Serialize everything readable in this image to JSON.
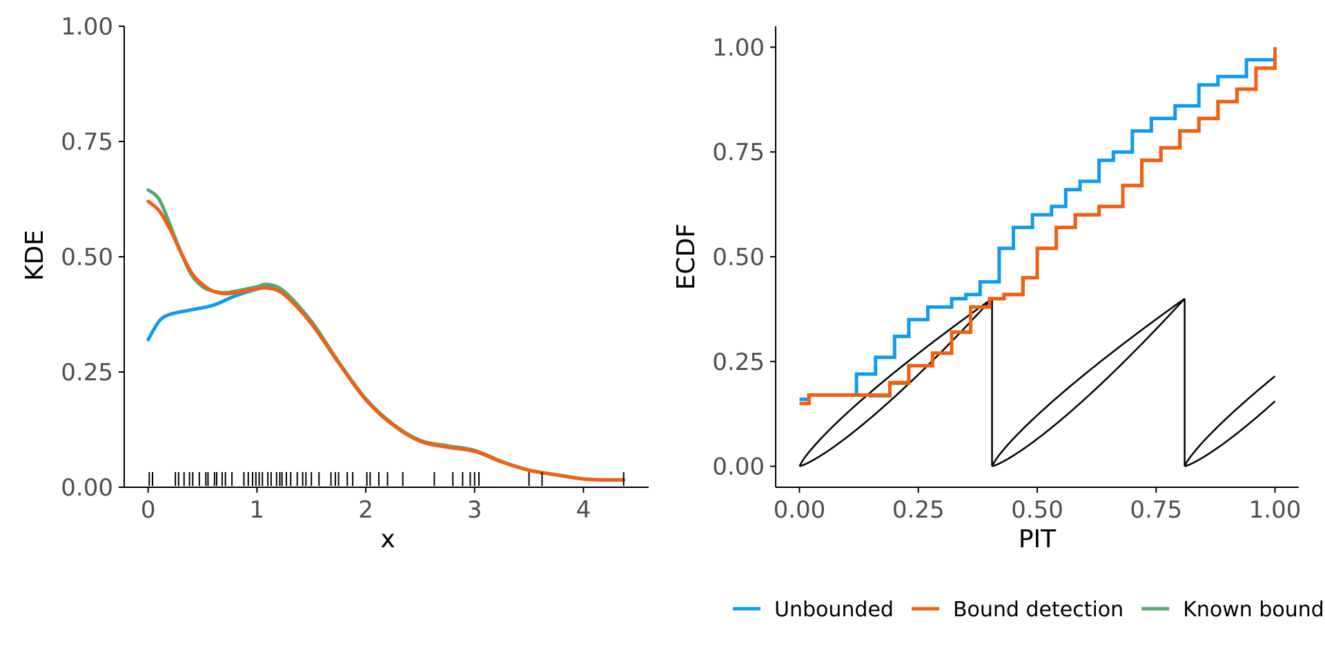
{
  "colors": {
    "unbounded": "#0f9bf0",
    "bound_detection": "#f2600f",
    "known_bounds": "#5aa672",
    "envelope": "#000000",
    "axis": "#000000"
  },
  "legend": {
    "items": [
      {
        "label": "Unbounded",
        "color_key": "unbounded"
      },
      {
        "label": "Bound detection",
        "color_key": "bound_detection"
      },
      {
        "label": "Known bounds",
        "color_key": "known_bounds"
      }
    ]
  },
  "chart_data": [
    {
      "type": "line",
      "xlabel": "x",
      "ylabel": "KDE",
      "xlim": [
        -0.22,
        4.6
      ],
      "ylim": [
        0,
        1
      ],
      "xticks": [
        0,
        1,
        2,
        3,
        4
      ],
      "xtick_labels": [
        "0",
        "1",
        "2",
        "3",
        "4"
      ],
      "yticks": [
        0,
        0.25,
        0.5,
        0.75,
        1
      ],
      "ytick_labels": [
        "0.00",
        "0.25",
        "0.50",
        "0.75",
        "1.00"
      ],
      "grid": false,
      "series": [
        {
          "name": "Unbounded",
          "color_key": "unbounded",
          "x": [
            0,
            0.1,
            0.2,
            0.4,
            0.6,
            0.8,
            1.0,
            1.1,
            1.25,
            1.5,
            1.75,
            2.0,
            2.25,
            2.5,
            2.75,
            3.0,
            3.25,
            3.5,
            3.75,
            4.0,
            4.2,
            4.37
          ],
          "y": [
            0.32,
            0.36,
            0.375,
            0.385,
            0.395,
            0.415,
            0.43,
            0.435,
            0.42,
            0.355,
            0.27,
            0.19,
            0.135,
            0.1,
            0.087,
            0.078,
            0.055,
            0.037,
            0.027,
            0.018,
            0.016,
            0.016
          ]
        },
        {
          "name": "Bound detection",
          "color_key": "bound_detection",
          "x": [
            0,
            0.1,
            0.2,
            0.3,
            0.4,
            0.5,
            0.6,
            0.7,
            0.8,
            0.9,
            1.0,
            1.1,
            1.25,
            1.5,
            1.75,
            2.0,
            2.25,
            2.5,
            2.75,
            3.0,
            3.25,
            3.5,
            3.75,
            4.0,
            4.2,
            4.37
          ],
          "y": [
            0.62,
            0.6,
            0.56,
            0.51,
            0.465,
            0.44,
            0.425,
            0.42,
            0.422,
            0.426,
            0.43,
            0.432,
            0.418,
            0.355,
            0.27,
            0.19,
            0.135,
            0.1,
            0.087,
            0.078,
            0.055,
            0.037,
            0.027,
            0.018,
            0.016,
            0.016
          ]
        },
        {
          "name": "Known bounds",
          "color_key": "known_bounds",
          "x": [
            0,
            0.1,
            0.2,
            0.3,
            0.4,
            0.5,
            0.6,
            0.7,
            0.8,
            0.9,
            1.0,
            1.1,
            1.25,
            1.5,
            1.75,
            2.0,
            2.25,
            2.5,
            2.75,
            3.0,
            3.25,
            3.5,
            3.75,
            4.0,
            4.2,
            4.37
          ],
          "y": [
            0.645,
            0.625,
            0.57,
            0.51,
            0.46,
            0.435,
            0.425,
            0.422,
            0.425,
            0.43,
            0.435,
            0.44,
            0.425,
            0.36,
            0.272,
            0.192,
            0.137,
            0.102,
            0.09,
            0.08,
            0.056,
            0.037,
            0.027,
            0.018,
            0.016,
            0.016
          ]
        }
      ],
      "rug": [
        0.01,
        0.04,
        0.25,
        0.28,
        0.33,
        0.38,
        0.41,
        0.47,
        0.53,
        0.55,
        0.61,
        0.63,
        0.68,
        0.71,
        0.77,
        0.88,
        0.92,
        0.96,
        0.99,
        1.02,
        1.05,
        1.1,
        1.13,
        1.18,
        1.21,
        1.23,
        1.27,
        1.31,
        1.37,
        1.42,
        1.45,
        1.5,
        1.57,
        1.68,
        1.72,
        1.75,
        1.83,
        1.88,
        2.01,
        2.04,
        2.12,
        2.2,
        2.34,
        2.63,
        2.8,
        2.89,
        2.96,
        3.0,
        3.04,
        3.5,
        3.62,
        4.37
      ]
    },
    {
      "type": "line",
      "xlabel": "PIT",
      "ylabel": "ECDF",
      "xlim": [
        -0.05,
        1.05
      ],
      "ylim": [
        -0.05,
        1.05
      ],
      "xticks": [
        0,
        0.25,
        0.5,
        0.75,
        1
      ],
      "xtick_labels": [
        "0.00",
        "0.25",
        "0.50",
        "0.75",
        "1.00"
      ],
      "yticks": [
        0,
        0.25,
        0.5,
        0.75,
        1
      ],
      "ytick_labels": [
        "0.00",
        "0.25",
        "0.50",
        "0.75",
        "1.00"
      ],
      "grid": false,
      "series": [
        {
          "name": "Unbounded",
          "color_key": "unbounded",
          "x": [
            0,
            0.02,
            0.09,
            0.12,
            0.16,
            0.2,
            0.23,
            0.27,
            0.32,
            0.35,
            0.38,
            0.42,
            0.45,
            0.49,
            0.53,
            0.56,
            0.59,
            0.63,
            0.66,
            0.7,
            0.74,
            0.79,
            0.84,
            0.88,
            0.94,
            1.0
          ],
          "y": [
            0.16,
            0.17,
            0.17,
            0.22,
            0.26,
            0.31,
            0.35,
            0.38,
            0.4,
            0.41,
            0.44,
            0.52,
            0.57,
            0.6,
            0.62,
            0.66,
            0.68,
            0.73,
            0.75,
            0.8,
            0.83,
            0.86,
            0.91,
            0.93,
            0.97,
            1.0
          ]
        },
        {
          "name": "Bound detection",
          "color_key": "bound_detection",
          "x": [
            0,
            0.02,
            0.08,
            0.15,
            0.19,
            0.23,
            0.28,
            0.32,
            0.36,
            0.4,
            0.43,
            0.47,
            0.5,
            0.54,
            0.58,
            0.63,
            0.68,
            0.72,
            0.76,
            0.8,
            0.84,
            0.88,
            0.92,
            0.96,
            1.0
          ],
          "y": [
            0.15,
            0.17,
            0.17,
            0.17,
            0.2,
            0.24,
            0.27,
            0.32,
            0.38,
            0.4,
            0.41,
            0.45,
            0.52,
            0.57,
            0.6,
            0.62,
            0.67,
            0.73,
            0.76,
            0.8,
            0.83,
            0.87,
            0.9,
            0.95,
            1.0
          ]
        },
        {
          "name": "Known bounds",
          "color_key": "known_bounds",
          "x": [
            0,
            0.02,
            0.08,
            0.15,
            0.19,
            0.23,
            0.28,
            0.32,
            0.36,
            0.4,
            0.43,
            0.47,
            0.5,
            0.54,
            0.58,
            0.63,
            0.68,
            0.72,
            0.76,
            0.8,
            0.84,
            0.88,
            0.92,
            0.96,
            1.0
          ],
          "y": [
            0.15,
            0.17,
            0.17,
            0.168,
            0.198,
            0.24,
            0.27,
            0.32,
            0.38,
            0.4,
            0.41,
            0.45,
            0.52,
            0.57,
            0.6,
            0.62,
            0.67,
            0.73,
            0.76,
            0.8,
            0.83,
            0.87,
            0.9,
            0.95,
            0.99
          ]
        }
      ],
      "envelope": {
        "period": 0.405,
        "height": 0.4,
        "segments": [
          [
            0,
            0.405
          ],
          [
            0.405,
            0.81
          ],
          [
            0.81,
            1.0
          ]
        ]
      }
    }
  ]
}
